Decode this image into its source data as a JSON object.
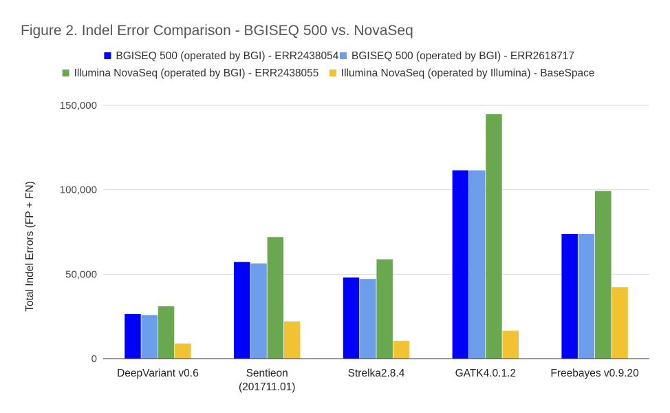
{
  "chart_data": {
    "type": "bar",
    "title": "Figure 2. Indel Error Comparison - BGISEQ 500 vs. NovaSeq",
    "xlabel": "",
    "ylabel": "Total Indel Errors (FP + FN)",
    "ylim": [
      0,
      150000
    ],
    "yticks": [
      {
        "value": 0,
        "label": "0"
      },
      {
        "value": 50000,
        "label": "50,000"
      },
      {
        "value": 100000,
        "label": "100,000"
      },
      {
        "value": 150000,
        "label": "150,000"
      }
    ],
    "grid": true,
    "legend_position": "top",
    "categories": [
      [
        "DeepVariant v0.6"
      ],
      [
        "Sentieon",
        "(201711.01)"
      ],
      [
        "Strelka2.8.4"
      ],
      [
        "GATK4.0.1.2"
      ],
      [
        "Freebayes v0.9.20"
      ]
    ],
    "series": [
      {
        "name": "BGISEQ 500 (operated by BGI) - ERR2438054",
        "color": "#0000ff",
        "values": [
          26500,
          57200,
          48000,
          111500,
          73800
        ]
      },
      {
        "name": "BGISEQ 500 (operated by BGI) - ERR2618717",
        "color": "#6d9eeb",
        "values": [
          25700,
          56400,
          47200,
          111500,
          73800
        ]
      },
      {
        "name": "Illumina NovaSeq (operated by BGI) - ERR2438055",
        "color": "#6aa84f",
        "values": [
          31000,
          72000,
          58800,
          144700,
          99300
        ]
      },
      {
        "name": "Illumina NovaSeq (operated by Illumina) - BaseSpace",
        "color": "#f1c232",
        "values": [
          8900,
          22000,
          10500,
          16500,
          42300
        ]
      }
    ]
  }
}
